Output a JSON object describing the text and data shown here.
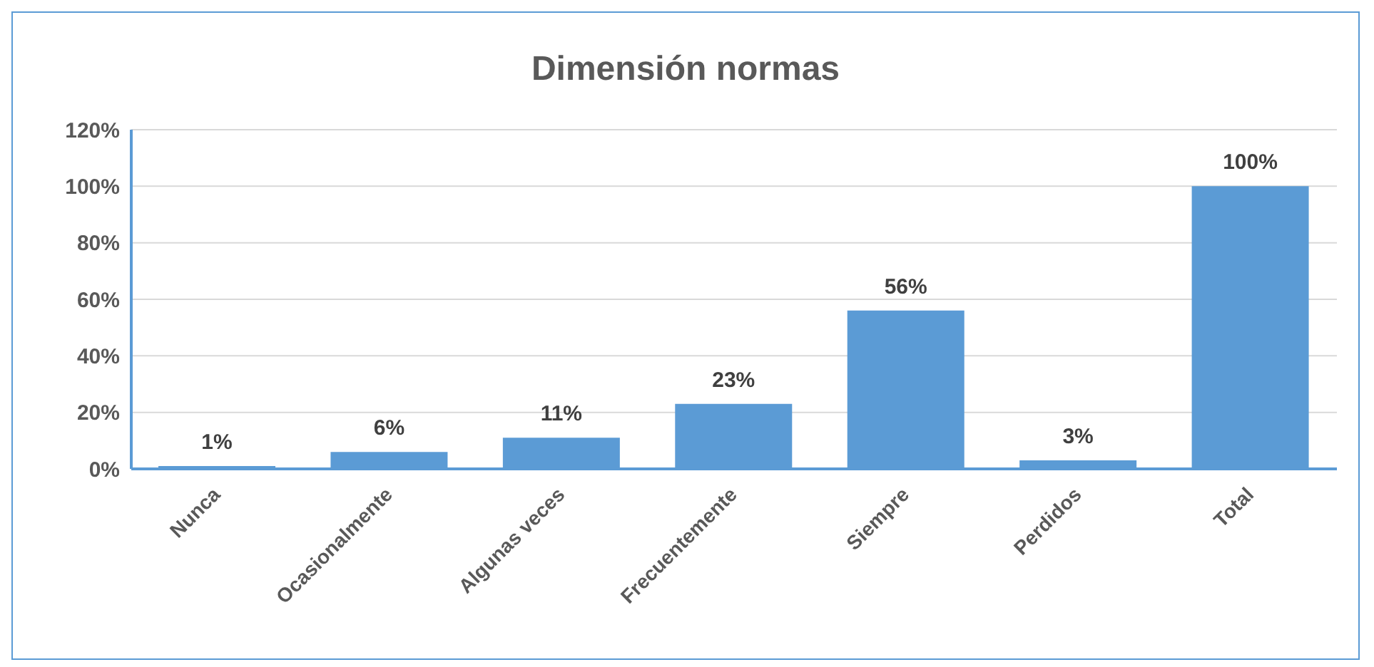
{
  "chart_data": {
    "type": "bar",
    "title": "Dimensión normas",
    "categories": [
      "Nunca",
      "Ocasionalmente",
      "Algunas veces",
      "Frecuentemente",
      "Siempre",
      "Perdidos",
      "Total"
    ],
    "values": [
      1,
      6,
      11,
      23,
      56,
      3,
      100
    ],
    "value_labels": [
      "1%",
      "6%",
      "11%",
      "23%",
      "56%",
      "3%",
      "100%"
    ],
    "color": "#5b9bd5",
    "ylim": [
      0,
      120
    ],
    "yticks": [
      {
        "value": 0,
        "label": "0%"
      },
      {
        "value": 20,
        "label": "20%"
      },
      {
        "value": 40,
        "label": "40%"
      },
      {
        "value": 60,
        "label": "60%"
      },
      {
        "value": 80,
        "label": "80%"
      },
      {
        "value": 100,
        "label": "100%"
      },
      {
        "value": 120,
        "label": "120%"
      }
    ],
    "grid": "y"
  }
}
